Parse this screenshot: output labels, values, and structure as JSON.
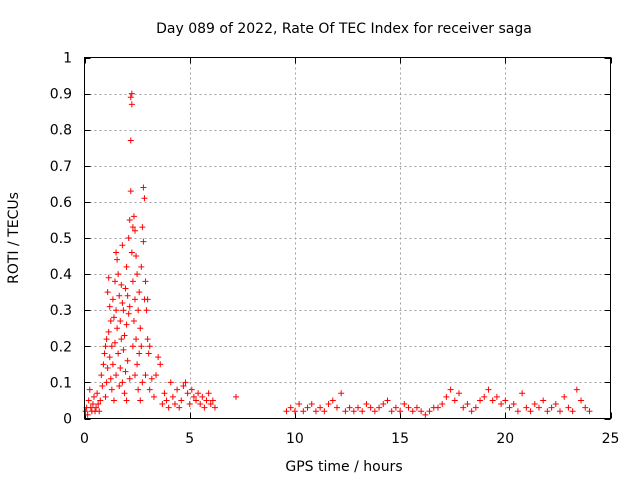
{
  "chart_data": {
    "type": "scatter",
    "title": "Day 089 of 2022, Rate Of TEC Index for receiver saga",
    "xlabel": "GPS time / hours",
    "ylabel": "ROTI / TECUs",
    "xlim": [
      0,
      25
    ],
    "ylim": [
      0,
      1
    ],
    "x_ticks": [
      "0",
      "5",
      "10",
      "15",
      "20",
      "25"
    ],
    "y_ticks": [
      "0",
      "0.1",
      "0.2",
      "0.3",
      "0.4",
      "0.5",
      "0.6",
      "0.7",
      "0.8",
      "0.9",
      "1"
    ],
    "grid": true,
    "marker": "plus",
    "color": "#ff0000",
    "points": [
      [
        0.05,
        0.02
      ],
      [
        0.1,
        0.03
      ],
      [
        0.15,
        0.01
      ],
      [
        0.2,
        0.05
      ],
      [
        0.25,
        0.08
      ],
      [
        0.3,
        0.03
      ],
      [
        0.35,
        0.02
      ],
      [
        0.4,
        0.04
      ],
      [
        0.45,
        0.06
      ],
      [
        0.5,
        0.02
      ],
      [
        0.55,
        0.03
      ],
      [
        0.6,
        0.07
      ],
      [
        0.65,
        0.04
      ],
      [
        0.7,
        0.02
      ],
      [
        0.75,
        0.05
      ],
      [
        0.8,
        0.12
      ],
      [
        0.85,
        0.09
      ],
      [
        0.9,
        0.15
      ],
      [
        0.95,
        0.18
      ],
      [
        1.0,
        0.2
      ],
      [
        1.0,
        0.06
      ],
      [
        1.05,
        0.22
      ],
      [
        1.05,
        0.1
      ],
      [
        1.1,
        0.35
      ],
      [
        1.1,
        0.14
      ],
      [
        1.15,
        0.39
      ],
      [
        1.15,
        0.24
      ],
      [
        1.2,
        0.31
      ],
      [
        1.2,
        0.17
      ],
      [
        1.25,
        0.27
      ],
      [
        1.25,
        0.11
      ],
      [
        1.3,
        0.2
      ],
      [
        1.3,
        0.08
      ],
      [
        1.35,
        0.33
      ],
      [
        1.35,
        0.15
      ],
      [
        1.4,
        0.28
      ],
      [
        1.4,
        0.05
      ],
      [
        1.45,
        0.38
      ],
      [
        1.45,
        0.21
      ],
      [
        1.5,
        0.46
      ],
      [
        1.5,
        0.3
      ],
      [
        1.5,
        0.12
      ],
      [
        1.55,
        0.44
      ],
      [
        1.55,
        0.25
      ],
      [
        1.6,
        0.4
      ],
      [
        1.6,
        0.18
      ],
      [
        1.65,
        0.34
      ],
      [
        1.65,
        0.09
      ],
      [
        1.7,
        0.27
      ],
      [
        1.7,
        0.14
      ],
      [
        1.75,
        0.37
      ],
      [
        1.75,
        0.22
      ],
      [
        1.8,
        0.48
      ],
      [
        1.8,
        0.32
      ],
      [
        1.8,
        0.1
      ],
      [
        1.85,
        0.3
      ],
      [
        1.85,
        0.19
      ],
      [
        1.9,
        0.23
      ],
      [
        1.9,
        0.07
      ],
      [
        1.95,
        0.36
      ],
      [
        1.95,
        0.13
      ],
      [
        2.0,
        0.42
      ],
      [
        2.0,
        0.26
      ],
      [
        2.0,
        0.05
      ],
      [
        2.05,
        0.34
      ],
      [
        2.05,
        0.16
      ],
      [
        2.1,
        0.5
      ],
      [
        2.1,
        0.29
      ],
      [
        2.15,
        0.55
      ],
      [
        2.15,
        0.31
      ],
      [
        2.15,
        0.11
      ],
      [
        2.2,
        0.63
      ],
      [
        2.2,
        0.77
      ],
      [
        2.2,
        0.89
      ],
      [
        2.25,
        0.9
      ],
      [
        2.25,
        0.87
      ],
      [
        2.25,
        0.46
      ],
      [
        2.3,
        0.53
      ],
      [
        2.3,
        0.38
      ],
      [
        2.3,
        0.2
      ],
      [
        2.35,
        0.56
      ],
      [
        2.35,
        0.27
      ],
      [
        2.4,
        0.52
      ],
      [
        2.4,
        0.33
      ],
      [
        2.4,
        0.12
      ],
      [
        2.45,
        0.45
      ],
      [
        2.45,
        0.22
      ],
      [
        2.5,
        0.4
      ],
      [
        2.5,
        0.15
      ],
      [
        2.55,
        0.3
      ],
      [
        2.55,
        0.08
      ],
      [
        2.6,
        0.35
      ],
      [
        2.6,
        0.18
      ],
      [
        2.65,
        0.25
      ],
      [
        2.65,
        0.05
      ],
      [
        2.7,
        0.42
      ],
      [
        2.7,
        0.2
      ],
      [
        2.75,
        0.53
      ],
      [
        2.75,
        0.1
      ],
      [
        2.8,
        0.64
      ],
      [
        2.8,
        0.49
      ],
      [
        2.85,
        0.61
      ],
      [
        2.85,
        0.33
      ],
      [
        2.9,
        0.38
      ],
      [
        2.9,
        0.12
      ],
      [
        2.95,
        0.3
      ],
      [
        3.0,
        0.33
      ],
      [
        3.0,
        0.22
      ],
      [
        3.05,
        0.18
      ],
      [
        3.1,
        0.2
      ],
      [
        3.1,
        0.08
      ],
      [
        3.2,
        0.11
      ],
      [
        3.3,
        0.06
      ],
      [
        3.4,
        0.12
      ],
      [
        3.5,
        0.17
      ],
      [
        3.6,
        0.15
      ],
      [
        3.7,
        0.04
      ],
      [
        3.8,
        0.07
      ],
      [
        3.9,
        0.05
      ],
      [
        4.0,
        0.03
      ],
      [
        4.1,
        0.1
      ],
      [
        4.2,
        0.06
      ],
      [
        4.3,
        0.04
      ],
      [
        4.4,
        0.08
      ],
      [
        4.5,
        0.03
      ],
      [
        4.6,
        0.05
      ],
      [
        4.7,
        0.09
      ],
      [
        4.8,
        0.1
      ],
      [
        4.9,
        0.07
      ],
      [
        5.0,
        0.04
      ],
      [
        5.1,
        0.08
      ],
      [
        5.2,
        0.06
      ],
      [
        5.3,
        0.05
      ],
      [
        5.4,
        0.07
      ],
      [
        5.5,
        0.04
      ],
      [
        5.6,
        0.06
      ],
      [
        5.7,
        0.03
      ],
      [
        5.8,
        0.05
      ],
      [
        5.9,
        0.07
      ],
      [
        6.0,
        0.04
      ],
      [
        6.1,
        0.05
      ],
      [
        6.2,
        0.03
      ],
      [
        7.2,
        0.06
      ],
      [
        9.6,
        0.02
      ],
      [
        9.8,
        0.03
      ],
      [
        10.0,
        0.02
      ],
      [
        10.2,
        0.04
      ],
      [
        10.4,
        0.02
      ],
      [
        10.6,
        0.03
      ],
      [
        10.8,
        0.04
      ],
      [
        11.0,
        0.02
      ],
      [
        11.2,
        0.03
      ],
      [
        11.4,
        0.02
      ],
      [
        11.6,
        0.04
      ],
      [
        11.8,
        0.05
      ],
      [
        12.0,
        0.03
      ],
      [
        12.2,
        0.07
      ],
      [
        12.4,
        0.02
      ],
      [
        12.6,
        0.03
      ],
      [
        12.8,
        0.02
      ],
      [
        13.0,
        0.03
      ],
      [
        13.2,
        0.02
      ],
      [
        13.4,
        0.04
      ],
      [
        13.6,
        0.03
      ],
      [
        13.8,
        0.02
      ],
      [
        14.0,
        0.03
      ],
      [
        14.2,
        0.04
      ],
      [
        14.4,
        0.05
      ],
      [
        14.6,
        0.02
      ],
      [
        14.8,
        0.03
      ],
      [
        15.0,
        0.02
      ],
      [
        15.2,
        0.04
      ],
      [
        15.4,
        0.03
      ],
      [
        15.6,
        0.02
      ],
      [
        15.8,
        0.03
      ],
      [
        16.0,
        0.02
      ],
      [
        16.2,
        0.01
      ],
      [
        16.4,
        0.02
      ],
      [
        16.6,
        0.03
      ],
      [
        16.8,
        0.03
      ],
      [
        17.0,
        0.04
      ],
      [
        17.2,
        0.06
      ],
      [
        17.4,
        0.08
      ],
      [
        17.6,
        0.05
      ],
      [
        17.8,
        0.07
      ],
      [
        18.0,
        0.03
      ],
      [
        18.2,
        0.04
      ],
      [
        18.4,
        0.02
      ],
      [
        18.6,
        0.03
      ],
      [
        18.8,
        0.05
      ],
      [
        19.0,
        0.06
      ],
      [
        19.2,
        0.08
      ],
      [
        19.4,
        0.05
      ],
      [
        19.6,
        0.06
      ],
      [
        19.8,
        0.04
      ],
      [
        20.0,
        0.05
      ],
      [
        20.2,
        0.03
      ],
      [
        20.4,
        0.04
      ],
      [
        20.6,
        0.02
      ],
      [
        20.8,
        0.07
      ],
      [
        21.0,
        0.03
      ],
      [
        21.2,
        0.02
      ],
      [
        21.4,
        0.04
      ],
      [
        21.6,
        0.03
      ],
      [
        21.8,
        0.05
      ],
      [
        22.0,
        0.02
      ],
      [
        22.2,
        0.03
      ],
      [
        22.4,
        0.04
      ],
      [
        22.6,
        0.02
      ],
      [
        22.8,
        0.06
      ],
      [
        23.0,
        0.03
      ],
      [
        23.2,
        0.02
      ],
      [
        23.4,
        0.08
      ],
      [
        23.6,
        0.05
      ],
      [
        23.8,
        0.03
      ],
      [
        24.0,
        0.02
      ]
    ]
  }
}
